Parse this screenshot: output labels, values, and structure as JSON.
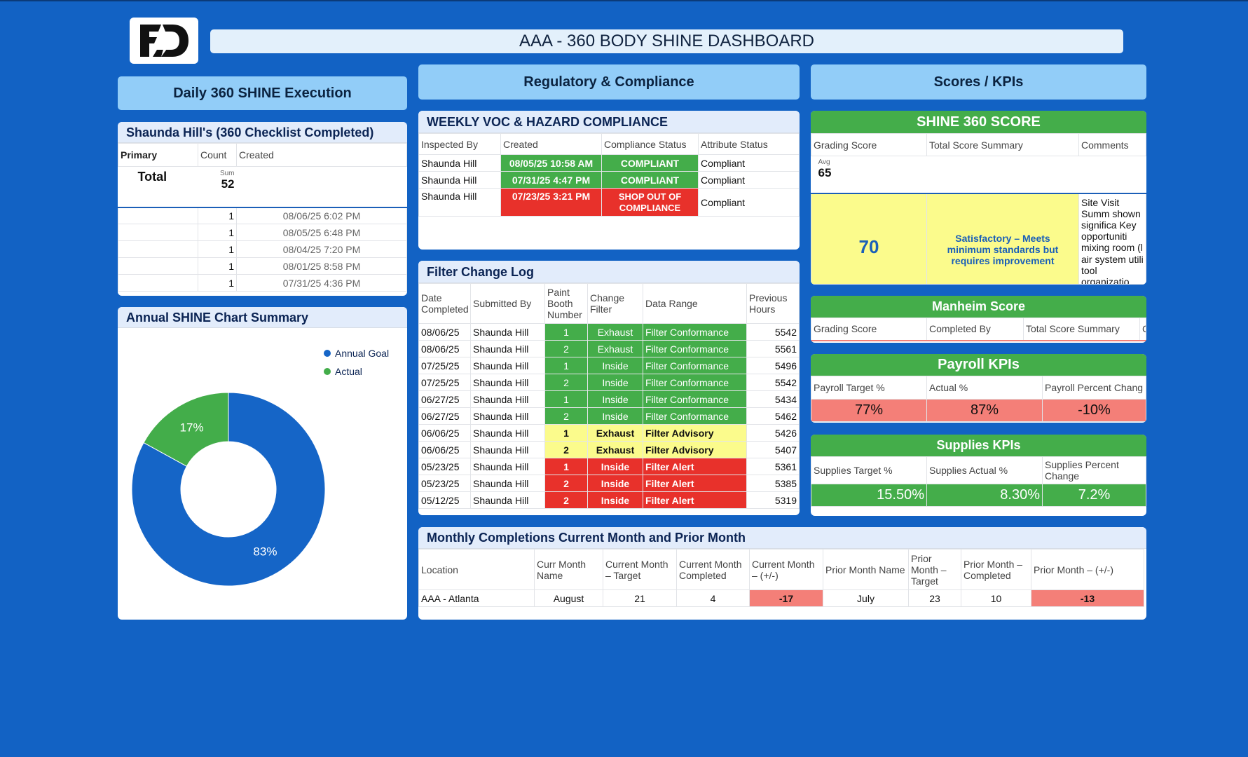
{
  "header": {
    "logo_text": "FD",
    "title": "AAA - 360 BODY SHINE DASHBOARD"
  },
  "sections": {
    "daily": "Daily 360 SHINE Execution",
    "regulatory": "Regulatory & Compliance",
    "scores": "Scores / KPIs"
  },
  "checklist": {
    "title": "Shaunda Hill's (360 Checklist Completed)",
    "columns": [
      "Primary",
      "Count",
      "Created"
    ],
    "total_label": "Total",
    "sum_label": "Sum",
    "sum_value": "52",
    "rows": [
      {
        "count": "1",
        "created": "08/06/25 6:02 PM"
      },
      {
        "count": "1",
        "created": "08/05/25 6:48 PM"
      },
      {
        "count": "1",
        "created": "08/04/25 7:20 PM"
      },
      {
        "count": "1",
        "created": "08/01/25 8:58 PM"
      },
      {
        "count": "1",
        "created": "07/31/25 4:36 PM"
      }
    ]
  },
  "annual_chart": {
    "title": "Annual SHINE Chart Summary",
    "legend": [
      {
        "label": "Annual Goal",
        "color": "#1565c7"
      },
      {
        "label": "Actual",
        "color": "#43ad4a"
      }
    ],
    "slice_labels": [
      "83%",
      "17%"
    ]
  },
  "chart_data": {
    "type": "pie",
    "title": "Annual SHINE Chart Summary",
    "categories": [
      "Annual Goal",
      "Actual"
    ],
    "values": [
      83,
      17
    ],
    "colors": [
      "#1565c7",
      "#43ad4a"
    ],
    "legend_position": "top-right"
  },
  "voc": {
    "title": "WEEKLY VOC & HAZARD COMPLIANCE",
    "columns": [
      "Inspected By",
      "Created",
      "Compliance Status",
      "Attribute Status"
    ],
    "rows": [
      {
        "by": "Shaunda Hill",
        "created": "08/05/25 10:58 AM",
        "status": "COMPLIANT",
        "attr": "Compliant",
        "tone": "green"
      },
      {
        "by": "Shaunda Hill",
        "created": "07/31/25 4:47 PM",
        "status": "COMPLIANT",
        "attr": "Compliant",
        "tone": "green"
      },
      {
        "by": "Shaunda Hill",
        "created": "07/23/25 3:21 PM",
        "status": "SHOP OUT OF COMPLIANCE",
        "attr": "Compliant",
        "tone": "red"
      }
    ]
  },
  "filter_log": {
    "title": "Filter Change Log",
    "columns": [
      "Date Completed",
      "Submitted By",
      "Paint Booth Number",
      "Change Filter",
      "Data Range",
      "Previous Hours"
    ],
    "rows": [
      {
        "date": "08/06/25",
        "by": "Shaunda Hill",
        "booth": "1",
        "filter": "Exhaust",
        "range": "Filter Conformance",
        "hours": "5542",
        "tone": "green"
      },
      {
        "date": "08/06/25",
        "by": "Shaunda Hill",
        "booth": "2",
        "filter": "Exhaust",
        "range": "Filter Conformance",
        "hours": "5561",
        "tone": "green"
      },
      {
        "date": "07/25/25",
        "by": "Shaunda Hill",
        "booth": "1",
        "filter": "Inside",
        "range": "Filter Conformance",
        "hours": "5496",
        "tone": "green"
      },
      {
        "date": "07/25/25",
        "by": "Shaunda Hill",
        "booth": "2",
        "filter": "Inside",
        "range": "Filter Conformance",
        "hours": "5542",
        "tone": "green"
      },
      {
        "date": "06/27/25",
        "by": "Shaunda Hill",
        "booth": "1",
        "filter": "Inside",
        "range": "Filter Conformance",
        "hours": "5434",
        "tone": "green"
      },
      {
        "date": "06/27/25",
        "by": "Shaunda Hill",
        "booth": "2",
        "filter": "Inside",
        "range": "Filter Conformance",
        "hours": "5462",
        "tone": "green"
      },
      {
        "date": "06/06/25",
        "by": "Shaunda Hill",
        "booth": "1",
        "filter": "Exhaust",
        "range": "Filter Advisory",
        "hours": "5426",
        "tone": "yellow"
      },
      {
        "date": "06/06/25",
        "by": "Shaunda Hill",
        "booth": "2",
        "filter": "Exhaust",
        "range": "Filter Advisory",
        "hours": "5407",
        "tone": "yellow"
      },
      {
        "date": "05/23/25",
        "by": "Shaunda Hill",
        "booth": "1",
        "filter": "Inside",
        "range": "Filter Alert",
        "hours": "5361",
        "tone": "red"
      },
      {
        "date": "05/23/25",
        "by": "Shaunda Hill",
        "booth": "2",
        "filter": "Inside",
        "range": "Filter Alert",
        "hours": "5385",
        "tone": "red"
      },
      {
        "date": "05/12/25",
        "by": "Shaunda Hill",
        "booth": "2",
        "filter": "Inside",
        "range": "Filter Alert",
        "hours": "5319",
        "tone": "red"
      }
    ]
  },
  "shine_score": {
    "title": "SHINE 360  SCORE",
    "columns": [
      "Grading Score",
      "Total Score Summary",
      "Comments"
    ],
    "avg_label": "Avg",
    "avg_value": "65",
    "score": "70",
    "summary": "Satisfactory – Meets minimum standards but requires improvement",
    "comments_visible": "Site Visit Summ shown significa Key opportuniti mixing room (l air system utili tool organizatio open (vapor vi for standard o"
  },
  "manheim": {
    "title": "Manheim Score",
    "columns": [
      "Grading Score",
      "Completed By",
      "Total Score Summary",
      "C"
    ]
  },
  "payroll": {
    "title": "Payroll KPIs",
    "columns": [
      "Payroll Target %",
      "Actual %",
      "Payroll Percent Chang"
    ],
    "values": [
      "77%",
      "87%",
      "-10%"
    ]
  },
  "supplies": {
    "title": "Supplies KPIs",
    "columns": [
      "Supplies Target %",
      "Supplies Actual %",
      "Supplies Percent Change"
    ],
    "values": [
      "15.50%",
      "8.30%",
      "7.2%"
    ]
  },
  "monthly": {
    "title": "Monthly Completions Current Month and Prior Month",
    "columns": [
      "Location",
      "Curr Month Name",
      "Current Month – Target",
      "Current Month Completed",
      "Current Month – (+/-)",
      "Prior Month Name",
      "Prior Month – Target",
      "Prior Month – Completed",
      "Prior Month – (+/-)"
    ],
    "row": [
      "AAA - Atlanta",
      "August",
      "21",
      "4",
      "-17",
      "July",
      "23",
      "10",
      "-13"
    ]
  }
}
